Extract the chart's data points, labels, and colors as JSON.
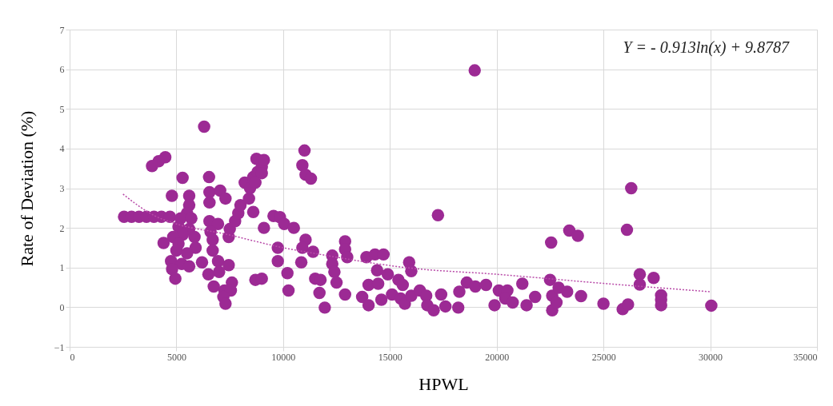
{
  "chart_data": {
    "type": "scatter",
    "xlabel": "HPWL",
    "ylabel": "Rate of Deviation (%)",
    "xlim": [
      0,
      35000
    ],
    "xticks": [
      0,
      5000,
      10000,
      15000,
      20000,
      25000,
      30000,
      35000
    ],
    "ylim": [
      -1,
      7
    ],
    "yticks": [
      -1,
      0,
      1,
      2,
      3,
      4,
      5,
      6,
      7
    ],
    "grid": true,
    "annotations": [
      "Y = - 0.913ln(x) + 9.8787"
    ],
    "series": [
      {
        "color": "#9c2a94",
        "marker": "circle",
        "x": [
          6300,
          4480,
          4170,
          3860,
          5290,
          6530,
          4790,
          5600,
          2550,
          2900,
          3250,
          3600,
          3950,
          4300,
          4700,
          5600,
          5500,
          5200,
          5700,
          5100,
          5600,
          5300,
          4850,
          5850,
          4400,
          5100,
          5900,
          5000,
          5500,
          4750,
          5250,
          5600,
          4800,
          4950,
          6550,
          6550,
          7050,
          7300,
          6550,
          6950,
          6600,
          6700,
          6700,
          6200,
          6950,
          7450,
          6500,
          7000,
          7600,
          6750,
          7250,
          7550,
          7200,
          7300,
          7450,
          7500,
          7750,
          7900,
          8000,
          8400,
          8600,
          8200,
          8600,
          8800,
          9000,
          8750,
          9100,
          9000,
          8450,
          8700,
          9100,
          9550,
          9850,
          10050,
          10500,
          9750,
          9750,
          8700,
          9000,
          10200,
          10250,
          11000,
          10900,
          11050,
          11300,
          11050,
          10900,
          11400,
          10850,
          11500,
          11700,
          11950,
          17250,
          12900,
          12900,
          12300,
          13000,
          12300,
          12400,
          12500,
          12900,
          11750,
          13900,
          14300,
          14700,
          14400,
          14000,
          14450,
          13700,
          14000,
          14600,
          14900,
          15400,
          15600,
          15900,
          16000,
          15100,
          15500,
          15700,
          16000,
          16400,
          16700,
          16750,
          17050,
          17400,
          17600,
          18200,
          18250,
          18600,
          19000,
          19500,
          19900,
          20100,
          20500,
          20400,
          20750,
          21200,
          21400,
          21800,
          22550,
          22500,
          22600,
          22900,
          22600,
          22800,
          23400,
          23800,
          23300,
          23950,
          26300,
          26100,
          25000,
          25900,
          26150,
          26700,
          26700,
          27350,
          27700,
          27700,
          27700,
          30050,
          18970
        ],
        "values": [
          4.55,
          3.78,
          3.68,
          3.56,
          3.26,
          3.28,
          2.81,
          2.81,
          2.28,
          2.28,
          2.28,
          2.28,
          2.28,
          2.28,
          2.28,
          2.57,
          2.37,
          2.24,
          2.24,
          2.03,
          1.97,
          1.83,
          1.77,
          1.77,
          1.62,
          1.6,
          1.5,
          1.43,
          1.36,
          1.16,
          1.09,
          1.03,
          0.96,
          0.72,
          2.9,
          2.64,
          2.94,
          2.74,
          2.17,
          2.1,
          1.9,
          1.7,
          1.43,
          1.13,
          1.16,
          1.06,
          0.83,
          0.89,
          0.62,
          0.52,
          0.42,
          0.42,
          0.26,
          0.09,
          1.77,
          1.97,
          2.17,
          2.37,
          2.57,
          2.74,
          2.4,
          3.14,
          3.28,
          3.41,
          3.54,
          3.74,
          3.71,
          3.38,
          3.0,
          3.14,
          2.0,
          2.3,
          2.27,
          2.1,
          2.0,
          1.5,
          1.16,
          0.69,
          0.72,
          0.86,
          0.42,
          3.95,
          3.58,
          3.34,
          3.24,
          1.7,
          1.5,
          1.4,
          1.13,
          0.72,
          0.36,
          -0.01,
          2.32,
          1.66,
          1.46,
          1.3,
          1.26,
          1.09,
          0.89,
          0.62,
          0.32,
          0.69,
          1.26,
          1.33,
          1.33,
          0.93,
          0.56,
          0.59,
          0.26,
          0.05,
          0.19,
          0.83,
          0.69,
          0.56,
          1.13,
          0.91,
          0.32,
          0.22,
          0.09,
          0.29,
          0.42,
          0.29,
          0.05,
          -0.08,
          0.32,
          0.02,
          -0.01,
          0.39,
          0.62,
          0.52,
          0.56,
          0.05,
          0.42,
          0.42,
          0.22,
          0.12,
          0.59,
          0.05,
          0.26,
          1.63,
          0.69,
          0.29,
          0.49,
          -0.08,
          0.12,
          1.93,
          1.8,
          0.39,
          0.28,
          3.0,
          1.95,
          0.09,
          -0.05,
          0.07,
          0.83,
          0.57,
          0.74,
          0.3,
          0.19,
          0.05,
          0.04,
          5.97
        ]
      },
      {
        "type": "line",
        "color": "#b84aa8",
        "line_style": "dotted",
        "marker": "none",
        "x": [
          2500,
          4000,
          5000,
          7250,
          10000,
          11750,
          15000,
          15900,
          20000,
          25000,
          30000
        ],
        "values": [
          2.85,
          2.3,
          2.1,
          1.85,
          1.5,
          1.33,
          1.05,
          0.99,
          0.83,
          0.6,
          0.39
        ]
      }
    ]
  }
}
